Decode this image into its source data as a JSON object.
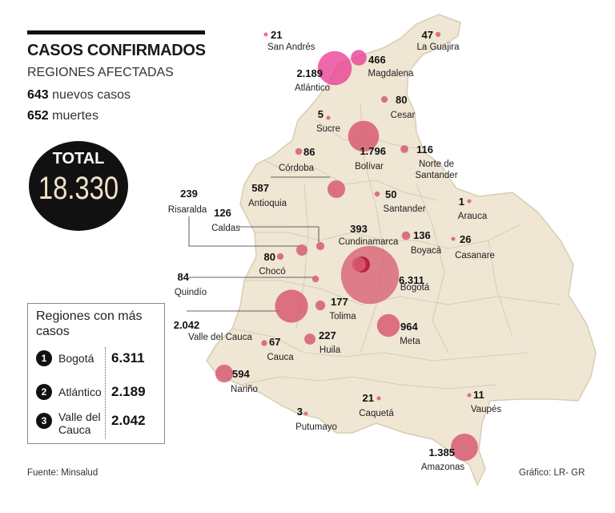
{
  "header": {
    "title": "CASOS CONFIRMADOS",
    "subtitle": "REGIONES AFECTADAS",
    "new_cases_number": "643",
    "new_cases_text": "nuevos casos",
    "deaths_number": "652",
    "deaths_text": "muertes"
  },
  "total": {
    "label": "TOTAL",
    "value": "18.330"
  },
  "top_regions": {
    "title": "Regiones con más casos",
    "items": [
      {
        "rank": "1",
        "name": "Bogotá",
        "value": "6.311"
      },
      {
        "rank": "2",
        "name": "Atlántico",
        "value": "2.189"
      },
      {
        "rank": "3",
        "name": "Valle del Cauca",
        "value": "2.042"
      }
    ]
  },
  "regions": [
    {
      "id": "san-andres",
      "name": "San Andrés",
      "value": "21",
      "cases": 21
    },
    {
      "id": "la-guajira",
      "name": "La Guajira",
      "value": "47",
      "cases": 47
    },
    {
      "id": "atlantico",
      "name": "Atlántico",
      "value": "2.189",
      "cases": 2189
    },
    {
      "id": "magdalena",
      "name": "Magdalena",
      "value": "466",
      "cases": 466
    },
    {
      "id": "cesar",
      "name": "Cesar",
      "value": "80",
      "cases": 80
    },
    {
      "id": "sucre",
      "name": "Sucre",
      "value": "5",
      "cases": 5
    },
    {
      "id": "bolivar",
      "name": "Bolívar",
      "value": "1.796",
      "cases": 1796
    },
    {
      "id": "cordoba",
      "name": "Córdoba",
      "value": "86",
      "cases": 86
    },
    {
      "id": "norte-de-santander",
      "name": "Norte de Santander",
      "value": "116",
      "cases": 116
    },
    {
      "id": "antioquia",
      "name": "Antioquia",
      "value": "587",
      "cases": 587
    },
    {
      "id": "santander",
      "name": "Santander",
      "value": "50",
      "cases": 50
    },
    {
      "id": "risaralda",
      "name": "Risaralda",
      "value": "239",
      "cases": 239
    },
    {
      "id": "caldas",
      "name": "Caldas",
      "value": "126",
      "cases": 126
    },
    {
      "id": "arauca",
      "name": "Arauca",
      "value": "1",
      "cases": 1
    },
    {
      "id": "cundinamarca",
      "name": "Cundinamarca",
      "value": "393",
      "cases": 393
    },
    {
      "id": "boyaca",
      "name": "Boyacá",
      "value": "136",
      "cases": 136
    },
    {
      "id": "casanare",
      "name": "Casanare",
      "value": "26",
      "cases": 26
    },
    {
      "id": "choco",
      "name": "Chocó",
      "value": "80",
      "cases": 80
    },
    {
      "id": "quindio",
      "name": "Quindío",
      "value": "84",
      "cases": 84
    },
    {
      "id": "bogota",
      "name": "Bogotá",
      "value": "6.311",
      "cases": 6311
    },
    {
      "id": "valle",
      "name": "Valle del Cauca",
      "value": "2.042",
      "cases": 2042
    },
    {
      "id": "tolima",
      "name": "Tolima",
      "value": "177",
      "cases": 177
    },
    {
      "id": "meta",
      "name": "Meta",
      "value": "964",
      "cases": 964
    },
    {
      "id": "cauca",
      "name": "Cauca",
      "value": "67",
      "cases": 67
    },
    {
      "id": "huila",
      "name": "Huila",
      "value": "227",
      "cases": 227
    },
    {
      "id": "narino",
      "name": "Nariño",
      "value": "594",
      "cases": 594
    },
    {
      "id": "caqueta",
      "name": "Caquetá",
      "value": "21",
      "cases": 21
    },
    {
      "id": "vaupes",
      "name": "Vaupés",
      "value": "11",
      "cases": 11
    },
    {
      "id": "putumayo",
      "name": "Putumayo",
      "value": "3",
      "cases": 3
    },
    {
      "id": "amazonas",
      "name": "Amazonas",
      "value": "1.385",
      "cases": 1385
    }
  ],
  "footer": {
    "source": "Fuente: Minsalud",
    "credit": "Gráfico: LR- GR"
  },
  "colors": {
    "land": "#efe6d4",
    "border": "#d9ccb4",
    "bubble": "#d75a72",
    "bubble_dark": "#b8223f",
    "bubble_bright": "#e8368f",
    "text": "#111111"
  }
}
